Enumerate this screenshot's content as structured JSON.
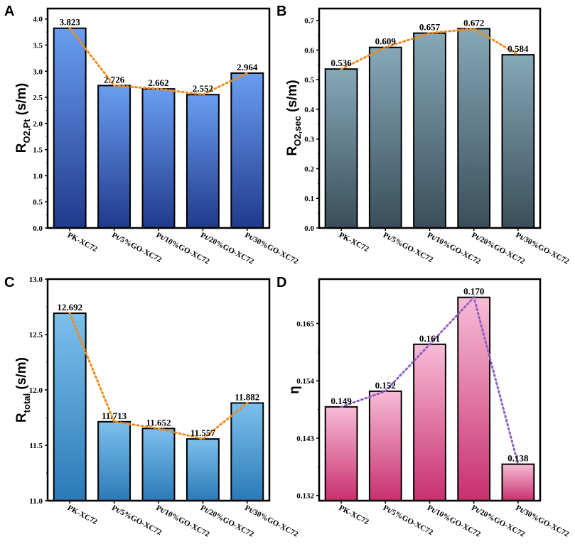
{
  "chart_data": [
    {
      "panel": "A",
      "type": "bar",
      "ylabel_main": "R",
      "ylabel_sub": "O2,Pt",
      "ylabel_unit": "(s/m)",
      "categories": [
        "PK-XC72",
        "Pt/5%GO-XC72",
        "Pt/10%GO-XC72",
        "Pt/20%GO-XC72",
        "Pt/30%GO-XC72"
      ],
      "values": [
        3.823,
        2.726,
        2.662,
        2.552,
        2.964
      ],
      "data_labels": [
        "3.823",
        "2.726",
        "2.662",
        "2.552",
        "2.964"
      ],
      "ylim": [
        0,
        4.2
      ],
      "yticks": [
        0.0,
        0.5,
        1.0,
        1.5,
        2.0,
        2.5,
        3.0,
        3.5,
        4.0
      ],
      "ytick_labels": [
        "0.0",
        "0.5",
        "1.0",
        "1.5",
        "2.0",
        "2.5",
        "3.0",
        "3.5",
        "4.0"
      ],
      "bar_color_top": "#6a9ef0",
      "bar_color_bottom": "#203a8c",
      "line_color": "#f08a1c"
    },
    {
      "panel": "B",
      "type": "bar",
      "ylabel_main": "R",
      "ylabel_sub": "O2,sec",
      "ylabel_unit": "(s/m)",
      "categories": [
        "PK-XC72",
        "Pt/5%GO-XC72",
        "Pt/10%GO-XC72",
        "Pt/20%GO-XC72",
        "Pt/30%GO-XC72"
      ],
      "values": [
        0.536,
        0.609,
        0.657,
        0.672,
        0.584
      ],
      "data_labels": [
        "0.536",
        "0.609",
        "0.657",
        "0.672",
        "0.584"
      ],
      "ylim": [
        0,
        0.74
      ],
      "yticks": [
        0.0,
        0.1,
        0.2,
        0.3,
        0.4,
        0.5,
        0.6,
        0.7
      ],
      "ytick_labels": [
        "0.0",
        "0.1",
        "0.2",
        "0.3",
        "0.4",
        "0.5",
        "0.6",
        "0.7"
      ],
      "bar_color_top": "#86a8b8",
      "bar_color_bottom": "#3a4e5a",
      "line_color": "#f08a1c"
    },
    {
      "panel": "C",
      "type": "bar",
      "ylabel_main": "R",
      "ylabel_sub": "total",
      "ylabel_unit": "(s/m)",
      "categories": [
        "PK-XC72",
        "Pt/5%GO-XC72",
        "Pt/10%GO-XC72",
        "Pt/20%GO-XC72",
        "Pt/30%GO-XC72"
      ],
      "values": [
        12.692,
        11.713,
        11.652,
        11.557,
        11.882
      ],
      "data_labels": [
        "12.692",
        "11.713",
        "11.652",
        "11.557",
        "11.882"
      ],
      "ylim": [
        11.0,
        13.0
      ],
      "yticks": [
        11.0,
        11.5,
        12.0,
        12.5,
        13.0
      ],
      "ytick_labels": [
        "11.0",
        "11.5",
        "12.0",
        "12.5",
        "13.0"
      ],
      "bar_color_top": "#7cc0ec",
      "bar_color_bottom": "#2a7ab8",
      "line_color": "#f08a1c"
    },
    {
      "panel": "D",
      "type": "bar",
      "ylabel_main": "η",
      "ylabel_sub": "",
      "ylabel_unit": "",
      "categories": [
        "PK-XC72",
        "Pt/5%GO-XC72",
        "Pt/10%GO-XC72",
        "Pt/20%GO-XC72",
        "Pt/30%GO-XC72"
      ],
      "values": [
        0.149,
        0.152,
        0.161,
        0.17,
        0.138
      ],
      "data_labels": [
        "0.149",
        "0.152",
        "0.161",
        "0.170",
        "0.138"
      ],
      "ylim": [
        0.131,
        0.1735
      ],
      "yticks": [
        0.132,
        0.143,
        0.154,
        0.165
      ],
      "ytick_labels": [
        "0.132",
        "0.143",
        "0.154",
        "0.165"
      ],
      "bar_color_top": "#f7bcd6",
      "bar_color_bottom": "#c8306e",
      "line_color": "#9060c0"
    }
  ]
}
